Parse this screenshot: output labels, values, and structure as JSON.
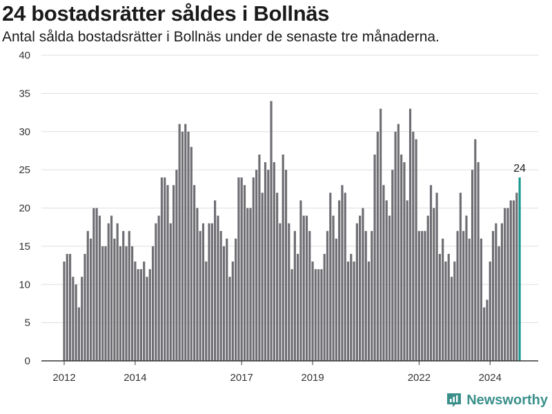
{
  "title": "24 bostadsrätter såldes i Bollnäs",
  "subtitle": "Antal sålda bostadsrätter i Bollnäs under de senaste tre månaderna.",
  "brand": "Newsworthy",
  "colors": {
    "bar": "#6e6e73",
    "highlight": "#1a9a8f",
    "grid": "#dddddd",
    "axis": "#333333",
    "brand": "#3a8f8a"
  },
  "chart_data": {
    "type": "bar",
    "title": "24 bostadsrätter såldes i Bollnäs",
    "subtitle": "Antal sålda bostadsrätter i Bollnäs under de senaste tre månaderna.",
    "xlabel": "",
    "ylabel": "",
    "ylim": [
      0,
      40
    ],
    "yticks": [
      0,
      5,
      10,
      15,
      20,
      25,
      30,
      35,
      40
    ],
    "grid": true,
    "x_tick_labels": [
      {
        "label": "2012",
        "index": 0
      },
      {
        "label": "2014",
        "index": 24
      },
      {
        "label": "2017",
        "index": 60
      },
      {
        "label": "2019",
        "index": 84
      },
      {
        "label": "2022",
        "index": 120
      },
      {
        "label": "2024",
        "index": 144
      }
    ],
    "values": [
      13,
      14,
      14,
      11,
      10,
      7,
      11,
      14,
      17,
      16,
      20,
      20,
      19,
      15,
      15,
      18,
      19,
      16,
      18,
      15,
      17,
      15,
      17,
      15,
      13,
      12,
      12,
      13,
      11,
      12,
      15,
      18,
      19,
      24,
      24,
      23,
      18,
      23,
      25,
      31,
      30,
      31,
      30,
      28,
      23,
      20,
      17,
      18,
      13,
      18,
      18,
      21,
      19,
      17,
      15,
      16,
      11,
      13,
      16,
      24,
      24,
      23,
      20,
      20,
      24,
      25,
      27,
      22,
      26,
      25,
      34,
      26,
      22,
      18,
      27,
      25,
      18,
      12,
      17,
      14,
      21,
      19,
      19,
      17,
      13,
      12,
      12,
      12,
      14,
      17,
      22,
      19,
      16,
      21,
      23,
      22,
      13,
      14,
      13,
      18,
      19,
      20,
      17,
      13,
      17,
      27,
      30,
      33,
      23,
      21,
      19,
      25,
      30,
      31,
      27,
      26,
      21,
      33,
      30,
      29,
      17,
      17,
      17,
      19,
      23,
      20,
      22,
      14,
      16,
      13,
      14,
      11,
      13,
      17,
      22,
      17,
      19,
      16,
      25,
      29,
      26,
      16,
      7,
      8,
      13,
      17,
      18,
      15,
      18,
      20,
      20,
      21,
      21,
      22,
      24
    ],
    "highlight_index": 154,
    "data_labels": [
      {
        "index": 154,
        "text": "24"
      }
    ]
  }
}
